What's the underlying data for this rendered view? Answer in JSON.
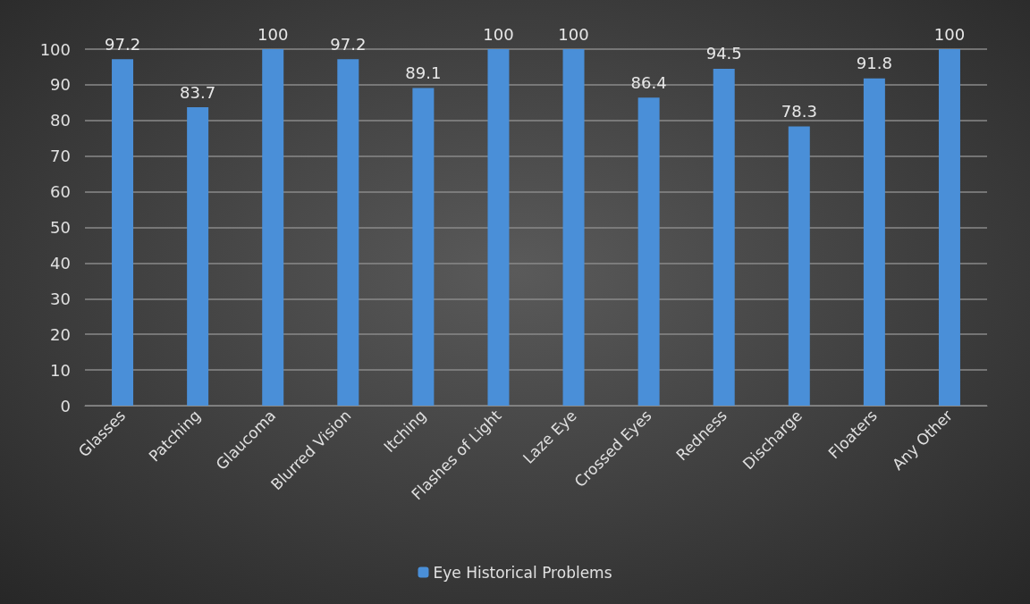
{
  "chart_data": {
    "type": "bar",
    "categories": [
      "Glasses",
      "Patching",
      "Glaucoma",
      "Blurred Vision",
      "Itching",
      "Flashes of Light",
      "Laze Eye",
      "Crossed Eyes",
      "Redness",
      "Discharge",
      "Floaters",
      "Any Other"
    ],
    "series": [
      {
        "name": "Eye Historical Problems",
        "color": "#4a8fd8",
        "values": [
          97.2,
          83.7,
          100,
          97.2,
          89.1,
          100,
          100,
          86.4,
          94.5,
          78.3,
          91.8,
          100
        ]
      }
    ],
    "ylim": [
      0,
      100
    ],
    "yticks": [
      0,
      10,
      20,
      30,
      40,
      50,
      60,
      70,
      80,
      90,
      100
    ],
    "grid": "y",
    "legend": "bottom",
    "data_labels": true
  }
}
